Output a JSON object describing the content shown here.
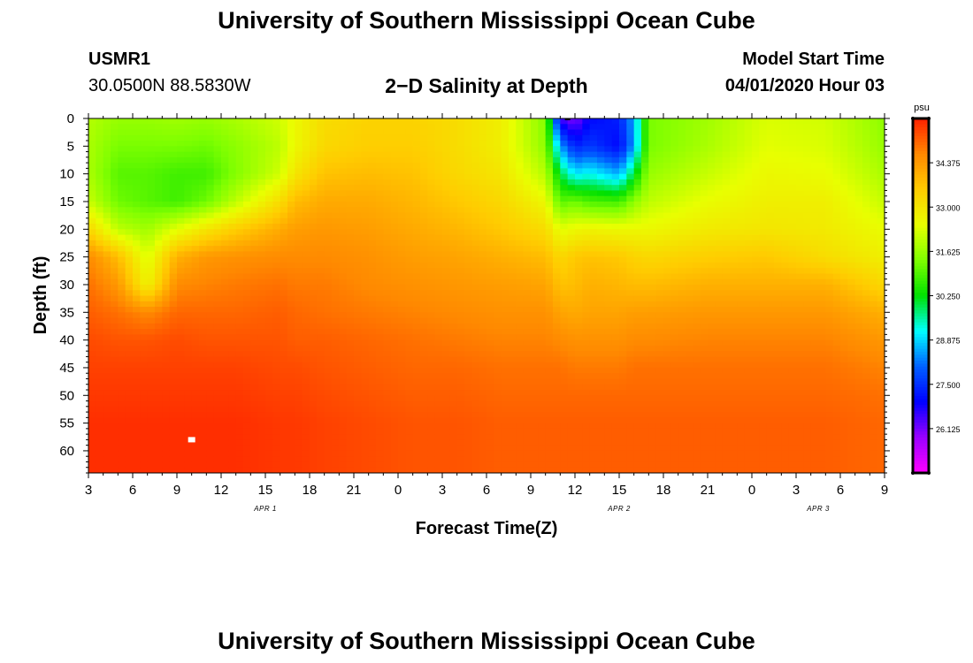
{
  "page": {
    "top_title": "University of Southern Mississippi Ocean Cube",
    "bottom_title": "University of Southern Mississippi Ocean Cube",
    "station_id": "USMR1",
    "station_coords": "30.0500N 88.5830W",
    "plot_title": "2−D Salinity at Depth",
    "model_start_label": "Model Start Time",
    "model_start_value": "04/01/2020 Hour 03"
  },
  "colors": {
    "scale": [
      "#ff00ff",
      "#9a00ff",
      "#0000ff",
      "#0060ff",
      "#00ffff",
      "#00e000",
      "#7fff00",
      "#e8ff00",
      "#ffcc00",
      "#ff8800",
      "#ff2000"
    ]
  },
  "chart_data": {
    "type": "heatmap",
    "title": "2−D Salinity at Depth",
    "xlabel": "Forecast Time(Z)",
    "ylabel": "Depth (ft)",
    "x_ticks": [
      "3",
      "6",
      "9",
      "12",
      "15",
      "18",
      "21",
      "0",
      "3",
      "6",
      "9",
      "12",
      "15",
      "18",
      "21",
      "0",
      "3",
      "6",
      "9"
    ],
    "date_labels": [
      {
        "label": "APR 1",
        "tick_index": 4
      },
      {
        "label": "APR 2",
        "tick_index": 12
      },
      {
        "label": "APR 3",
        "tick_index": 16.5
      }
    ],
    "y_ticks": [
      0,
      5,
      10,
      15,
      20,
      25,
      30,
      35,
      40,
      45,
      50,
      55,
      60
    ],
    "ylim": [
      0,
      64
    ],
    "colorbar": {
      "unit": "psu",
      "range": [
        24.75,
        35.75
      ],
      "tick_labels": [
        "34.375",
        "33.000",
        "31.625",
        "30.250",
        "28.875",
        "27.500",
        "26.125"
      ]
    },
    "depths": [
      0,
      5,
      10,
      15,
      20,
      25,
      30,
      35,
      40,
      45,
      50,
      55,
      60,
      64
    ],
    "columns": [
      {
        "x": 0,
        "s": [
          31.9,
          31.8,
          31.8,
          32.1,
          33.3,
          34.6,
          34.9,
          35.1,
          35.3,
          35.4,
          35.5,
          35.6,
          35.6,
          35.6
        ]
      },
      {
        "x": 2,
        "s": [
          31.6,
          31.3,
          31.0,
          31.2,
          32.0,
          33.8,
          34.4,
          34.9,
          35.2,
          35.4,
          35.5,
          35.6,
          35.6,
          35.6
        ]
      },
      {
        "x": 4,
        "s": [
          31.6,
          31.3,
          31.0,
          31.0,
          31.7,
          32.3,
          32.7,
          34.6,
          35.2,
          35.4,
          35.5,
          35.6,
          35.6,
          35.6
        ]
      },
      {
        "x": 6,
        "s": [
          31.7,
          31.3,
          30.8,
          30.8,
          32.4,
          34.0,
          34.6,
          35.0,
          35.3,
          35.4,
          35.5,
          35.6,
          35.6,
          35.6
        ]
      },
      {
        "x": 8,
        "s": [
          31.6,
          31.2,
          30.8,
          31.2,
          33.0,
          34.4,
          34.7,
          35.0,
          35.2,
          35.4,
          35.5,
          35.6,
          35.6,
          35.6
        ]
      },
      {
        "x": 10,
        "s": [
          31.8,
          31.5,
          31.4,
          32.0,
          33.5,
          34.5,
          34.8,
          35.0,
          35.2,
          35.4,
          35.5,
          35.6,
          35.6,
          35.6
        ]
      },
      {
        "x": 13,
        "s": [
          32.2,
          32.0,
          32.2,
          33.2,
          34.1,
          34.6,
          34.9,
          35.1,
          35.2,
          35.3,
          35.4,
          35.5,
          35.5,
          35.5
        ]
      },
      {
        "x": 14,
        "s": [
          32.6,
          32.6,
          33.0,
          33.8,
          34.3,
          34.6,
          34.8,
          35.0,
          35.1,
          35.3,
          35.4,
          35.5,
          35.5,
          35.5
        ]
      },
      {
        "x": 16,
        "s": [
          33.2,
          33.3,
          33.7,
          34.1,
          34.4,
          34.6,
          34.8,
          34.9,
          35.1,
          35.2,
          35.3,
          35.4,
          35.4,
          35.4
        ]
      },
      {
        "x": 19,
        "s": [
          33.4,
          33.5,
          33.8,
          34.1,
          34.3,
          34.5,
          34.6,
          34.8,
          35.0,
          35.1,
          35.2,
          35.3,
          35.3,
          35.3
        ]
      },
      {
        "x": 22,
        "s": [
          33.4,
          33.5,
          33.7,
          33.9,
          34.1,
          34.3,
          34.5,
          34.7,
          34.9,
          35.0,
          35.1,
          35.2,
          35.2,
          35.2
        ]
      },
      {
        "x": 25,
        "s": [
          33.2,
          33.2,
          33.3,
          33.6,
          33.9,
          34.2,
          34.4,
          34.6,
          34.8,
          35.0,
          35.1,
          35.2,
          35.2,
          35.2
        ]
      },
      {
        "x": 28,
        "s": [
          32.8,
          32.8,
          33.0,
          33.3,
          33.6,
          34.0,
          34.3,
          34.5,
          34.7,
          34.9,
          35.0,
          35.1,
          35.1,
          35.1
        ]
      },
      {
        "x": 31,
        "s": [
          31.4,
          31.5,
          31.9,
          32.6,
          33.2,
          33.8,
          34.2,
          34.5,
          34.7,
          34.9,
          35.0,
          35.1,
          35.1,
          35.1
        ]
      },
      {
        "x": 32,
        "s": [
          26.5,
          28.5,
          30.0,
          31.0,
          32.4,
          33.3,
          33.7,
          34.2,
          34.6,
          34.9,
          35.0,
          35.1,
          35.1,
          35.1
        ]
      },
      {
        "x": 33,
        "s": [
          26.0,
          27.3,
          29.0,
          31.2,
          32.6,
          33.6,
          33.8,
          34.1,
          34.5,
          34.8,
          35.0,
          35.1,
          35.1,
          35.1
        ]
      },
      {
        "x": 34,
        "s": [
          27.0,
          27.6,
          29.2,
          30.9,
          32.7,
          33.7,
          34.0,
          34.2,
          34.5,
          34.8,
          35.0,
          35.1,
          35.1,
          35.1
        ]
      },
      {
        "x": 36,
        "s": [
          27.3,
          27.0,
          28.6,
          30.8,
          32.6,
          33.6,
          33.9,
          34.2,
          34.5,
          34.8,
          35.0,
          35.1,
          35.1,
          35.1
        ]
      },
      {
        "x": 37,
        "s": [
          28.6,
          28.5,
          30.0,
          31.5,
          32.6,
          33.4,
          33.8,
          34.3,
          34.6,
          34.9,
          35.0,
          35.1,
          35.1,
          35.1
        ]
      },
      {
        "x": 38,
        "s": [
          31.3,
          31.3,
          31.6,
          32.0,
          32.6,
          33.3,
          33.8,
          34.3,
          34.6,
          34.9,
          35.0,
          35.1,
          35.1,
          35.1
        ]
      },
      {
        "x": 42,
        "s": [
          31.7,
          31.8,
          32.1,
          32.5,
          32.9,
          33.5,
          34.0,
          34.4,
          34.7,
          34.9,
          35.0,
          35.1,
          35.1,
          35.1
        ]
      },
      {
        "x": 46,
        "s": [
          32.3,
          32.4,
          32.6,
          32.8,
          33.0,
          33.6,
          34.0,
          34.4,
          34.7,
          34.9,
          35.0,
          35.1,
          35.1,
          35.1
        ]
      },
      {
        "x": 50,
        "s": [
          32.2,
          32.3,
          32.5,
          32.8,
          32.9,
          33.2,
          34.0,
          34.4,
          34.7,
          34.9,
          35.0,
          35.1,
          35.1,
          35.1
        ]
      },
      {
        "x": 54,
        "s": [
          31.5,
          31.6,
          31.8,
          32.1,
          32.5,
          32.8,
          33.3,
          34.0,
          34.4,
          34.7,
          34.9,
          35.0,
          35.0,
          35.0
        ]
      }
    ],
    "markers": [
      {
        "kind": "white-box",
        "x": 7,
        "depth": 58
      },
      {
        "kind": "black-dash",
        "x": 32.5,
        "depth": 0
      }
    ]
  }
}
